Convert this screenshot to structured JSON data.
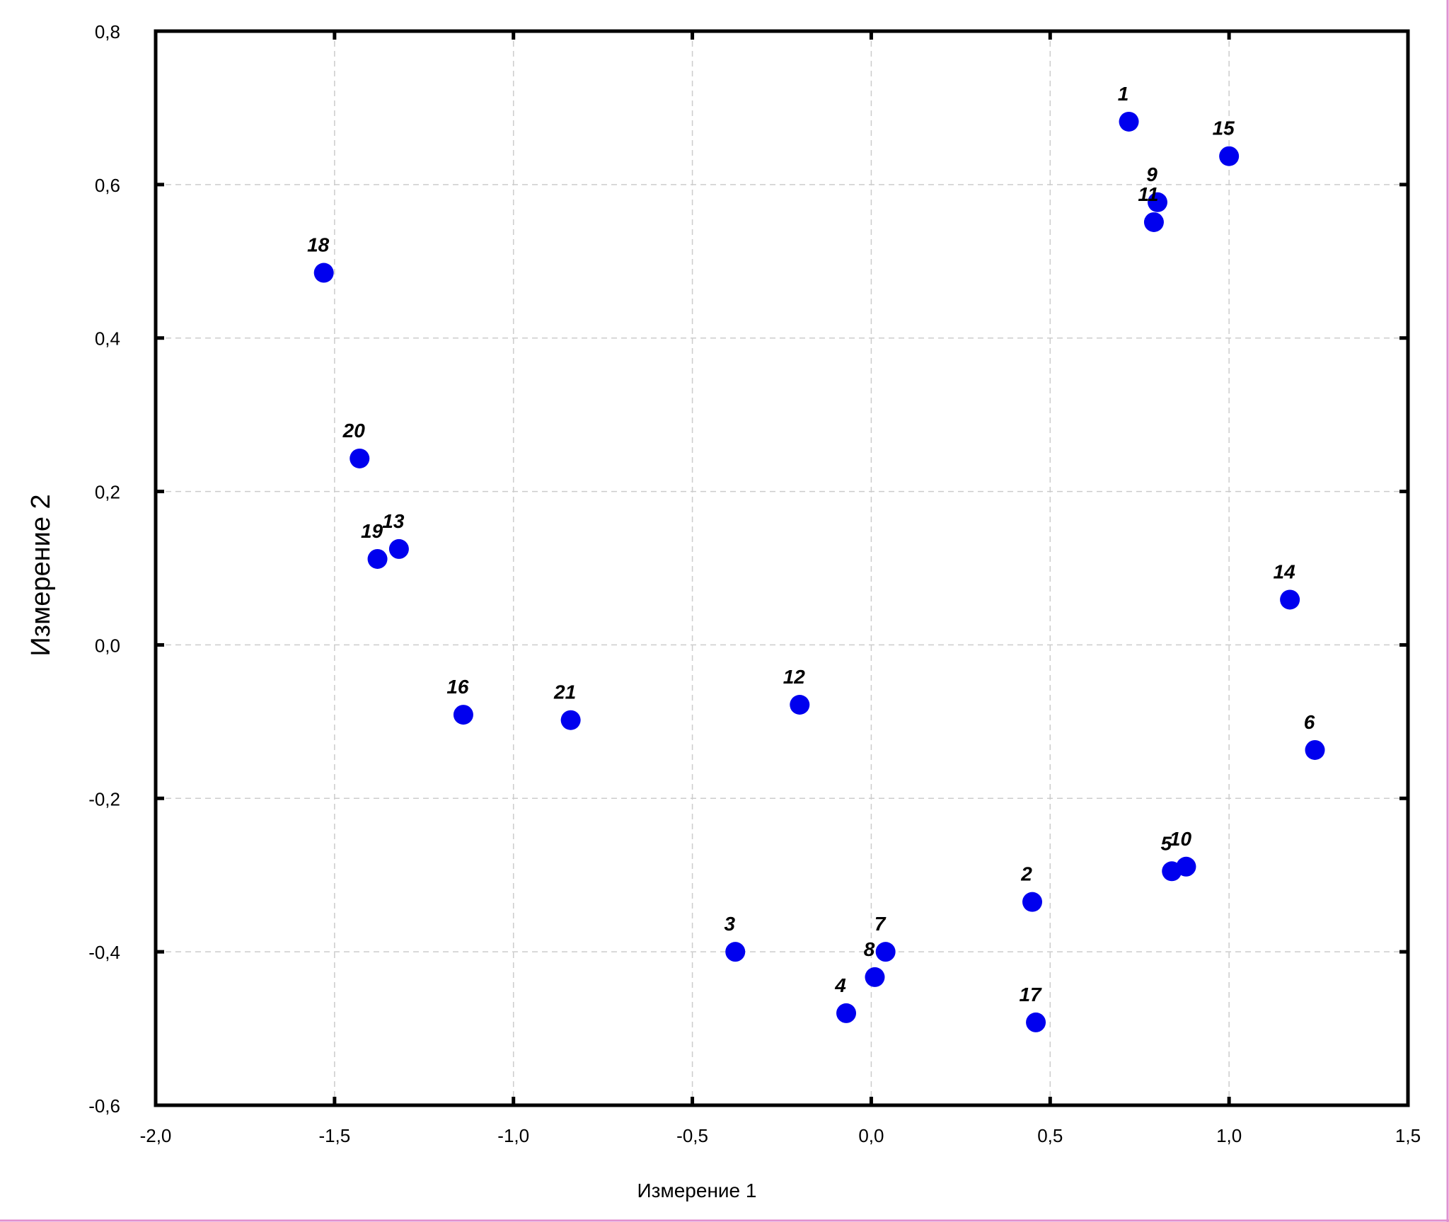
{
  "chart_data": {
    "type": "scatter",
    "title": "",
    "xlabel": "Измерение 1",
    "ylabel": "Измерение 2",
    "xlim": [
      -2.0,
      1.5
    ],
    "ylim": [
      -0.6,
      0.8
    ],
    "grid": true,
    "marker_color": "#0000ee",
    "x_ticks": [
      {
        "value": -2.0,
        "label": "-2,0"
      },
      {
        "value": -1.5,
        "label": "-1,5"
      },
      {
        "value": -1.0,
        "label": "-1,0"
      },
      {
        "value": -0.5,
        "label": "-0,5"
      },
      {
        "value": 0.0,
        "label": "0,0"
      },
      {
        "value": 0.5,
        "label": "0,5"
      },
      {
        "value": 1.0,
        "label": "1,0"
      },
      {
        "value": 1.5,
        "label": "1,5"
      }
    ],
    "y_ticks": [
      {
        "value": 0.8,
        "label": "0,8"
      },
      {
        "value": 0.6,
        "label": "0,6"
      },
      {
        "value": 0.4,
        "label": "0,4"
      },
      {
        "value": 0.2,
        "label": "0,2"
      },
      {
        "value": 0.0,
        "label": "0,0"
      },
      {
        "value": -0.2,
        "label": "-0,2"
      },
      {
        "value": -0.4,
        "label": "-0,4"
      },
      {
        "value": -0.6,
        "label": "-0,6"
      }
    ],
    "points": [
      {
        "label": "1",
        "x": 0.72,
        "y": 0.682
      },
      {
        "label": "2",
        "x": 0.45,
        "y": -0.335
      },
      {
        "label": "3",
        "x": -0.38,
        "y": -0.4
      },
      {
        "label": "4",
        "x": -0.07,
        "y": -0.48
      },
      {
        "label": "5",
        "x": 0.84,
        "y": -0.295
      },
      {
        "label": "6",
        "x": 1.24,
        "y": -0.137
      },
      {
        "label": "7",
        "x": 0.04,
        "y": -0.4
      },
      {
        "label": "8",
        "x": 0.01,
        "y": -0.433
      },
      {
        "label": "9",
        "x": 0.8,
        "y": 0.577
      },
      {
        "label": "10",
        "x": 0.88,
        "y": -0.289
      },
      {
        "label": "11",
        "x": 0.79,
        "y": 0.551
      },
      {
        "label": "12",
        "x": -0.2,
        "y": -0.078
      },
      {
        "label": "13",
        "x": -1.32,
        "y": 0.125
      },
      {
        "label": "14",
        "x": 1.17,
        "y": 0.059
      },
      {
        "label": "15",
        "x": 1.0,
        "y": 0.637
      },
      {
        "label": "16",
        "x": -1.14,
        "y": -0.091
      },
      {
        "label": "17",
        "x": 0.46,
        "y": -0.492
      },
      {
        "label": "18",
        "x": -1.53,
        "y": 0.485
      },
      {
        "label": "19",
        "x": -1.38,
        "y": 0.112
      },
      {
        "label": "20",
        "x": -1.43,
        "y": 0.243
      },
      {
        "label": "21",
        "x": -0.84,
        "y": -0.098
      }
    ]
  }
}
